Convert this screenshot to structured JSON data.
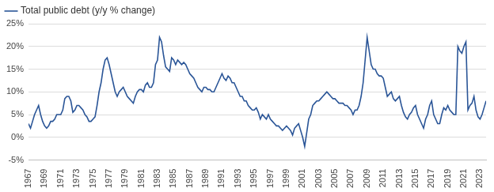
{
  "chart_data": {
    "type": "line",
    "categories": [
      "1967",
      null,
      null,
      null,
      null,
      null,
      null,
      null,
      "1969",
      null,
      null,
      null,
      null,
      null,
      null,
      null,
      "1971",
      null,
      null,
      null,
      null,
      null,
      null,
      null,
      "1973",
      null,
      null,
      null,
      null,
      null,
      null,
      null,
      "1975",
      null,
      null,
      null,
      null,
      null,
      null,
      null,
      "1977",
      null,
      null,
      null,
      null,
      null,
      null,
      null,
      "1979",
      null,
      null,
      null,
      null,
      null,
      null,
      null,
      "1981",
      null,
      null,
      null,
      null,
      null,
      null,
      null,
      "1983",
      null,
      null,
      null,
      null,
      null,
      null,
      null,
      "1985",
      null,
      null,
      null,
      null,
      null,
      null,
      null,
      "1987",
      null,
      null,
      null,
      null,
      null,
      null,
      null,
      "1989",
      null,
      null,
      null,
      null,
      null,
      null,
      null,
      "1991",
      null,
      null,
      null,
      null,
      null,
      null,
      null,
      "1993",
      null,
      null,
      null,
      null,
      null,
      null,
      null,
      "1995",
      null,
      null,
      null,
      null,
      null,
      null,
      null,
      "1997",
      null,
      null,
      null,
      null,
      null,
      null,
      null,
      "1999",
      null,
      null,
      null,
      null,
      null,
      null,
      null,
      "2001",
      null,
      null,
      null,
      null,
      null,
      null,
      null,
      "2003",
      null,
      null,
      null,
      null,
      null,
      null,
      null,
      "2005",
      null,
      null,
      null,
      null,
      null,
      null,
      null,
      "2007",
      null,
      null,
      null,
      null,
      null,
      null,
      null,
      "2009",
      null,
      null,
      null,
      null,
      null,
      null,
      null,
      "2011",
      null,
      null,
      null,
      null,
      null,
      null,
      null,
      "2013",
      null,
      null,
      null,
      null,
      null,
      null,
      null,
      "2015",
      null,
      null,
      null,
      null,
      null,
      null,
      null,
      "2017",
      null,
      null,
      null,
      null,
      null,
      null,
      null,
      "2019",
      null,
      null,
      null,
      null,
      null,
      null,
      null,
      "2021",
      null,
      null,
      null,
      null,
      null,
      null,
      null,
      "2023",
      null,
      null,
      null
    ],
    "series": [
      {
        "name": "Total public debt (y/y % change)",
        "color": "#2a5597",
        "values": [
          3,
          2,
          3.5,
          5,
          6,
          7,
          5,
          3.5,
          2.5,
          2,
          2.5,
          3.5,
          3.5,
          4,
          5,
          5,
          5,
          6,
          8.5,
          9,
          9,
          8,
          5.5,
          6,
          7,
          7,
          6.5,
          6,
          5,
          4.5,
          3.5,
          3.5,
          4,
          4.5,
          7,
          10,
          12,
          15,
          17,
          17.5,
          16,
          14,
          12,
          10,
          9,
          10,
          10.5,
          11,
          10,
          9,
          8.5,
          8,
          7.5,
          9,
          10,
          10.5,
          10.5,
          10,
          11.5,
          12,
          11,
          11,
          12,
          16,
          17,
          22,
          21,
          18,
          15.5,
          15,
          14.5,
          17.5,
          17,
          16,
          17,
          16.5,
          16,
          16.5,
          16,
          15,
          14,
          13.5,
          13,
          12,
          11,
          10.5,
          10,
          11,
          11,
          10.5,
          10.5,
          10,
          10,
          11,
          12,
          13,
          14,
          13,
          12.5,
          13.5,
          13,
          12,
          12,
          11,
          10,
          9,
          9,
          8,
          8,
          7,
          6.5,
          6,
          6,
          6.5,
          5.5,
          4,
          5,
          4.5,
          4,
          5,
          4,
          3.5,
          3,
          2.5,
          2.5,
          2,
          1.5,
          2,
          2.5,
          2,
          1.5,
          0.5,
          2,
          2.5,
          3,
          1.5,
          0,
          -2,
          1,
          4,
          5,
          7,
          7.5,
          8,
          8,
          8.5,
          9,
          9.5,
          10,
          9.5,
          9,
          8.5,
          8.5,
          8,
          7.5,
          7.5,
          7.5,
          7,
          7,
          6.5,
          6,
          5,
          6,
          6,
          7,
          9,
          12,
          17,
          22,
          19,
          16,
          15,
          15,
          14,
          13.5,
          13.5,
          13,
          11,
          9,
          9.5,
          10,
          8.5,
          8,
          8.5,
          9,
          7,
          5.5,
          4.5,
          4,
          5,
          5.5,
          6.5,
          7,
          5,
          4,
          3,
          2,
          4,
          5,
          7,
          8,
          5,
          4,
          3,
          3,
          5,
          6.5,
          6,
          7,
          6,
          5.5,
          5,
          5,
          20,
          19,
          18.5,
          20,
          21,
          6,
          7,
          7.5,
          9,
          6,
          4.5,
          4,
          5,
          6.5,
          8
        ]
      }
    ],
    "ylim": [
      -5,
      25
    ],
    "yticks": [
      {
        "value": -5,
        "label": "-5%"
      },
      {
        "value": 0,
        "label": "0%"
      },
      {
        "value": 5,
        "label": "5%"
      },
      {
        "value": 10,
        "label": "10%"
      },
      {
        "value": 15,
        "label": "15%"
      },
      {
        "value": 20,
        "label": "20%"
      },
      {
        "value": 25,
        "label": "25%"
      }
    ],
    "grid": true,
    "legend": "top-left"
  }
}
